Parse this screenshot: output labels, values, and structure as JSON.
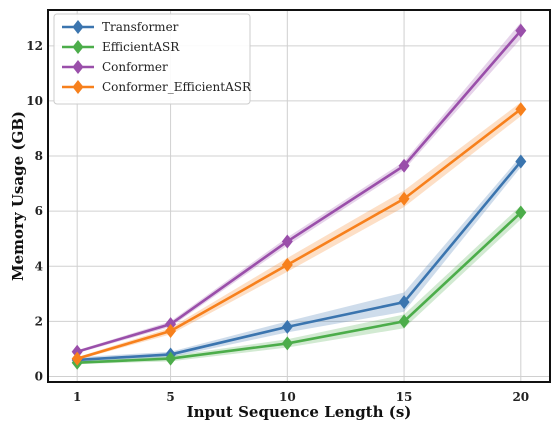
{
  "chart_data": {
    "type": "line",
    "title": "",
    "xlabel": "Input Sequence Length (s)",
    "ylabel": "Memory Usage (GB)",
    "x": [
      1,
      5,
      10,
      15,
      20
    ],
    "xticks": [
      "1",
      "5",
      "10",
      "15",
      "20"
    ],
    "yticks": [
      "0",
      "2",
      "4",
      "6",
      "8",
      "10",
      "12"
    ],
    "xlim": [
      -0.25,
      21.25
    ],
    "ylim": [
      -0.2,
      13.3
    ],
    "grid": true,
    "legend_position": "top-left",
    "marker": "diamond",
    "series": [
      {
        "name": "Transformer",
        "color": "#3b75af",
        "values": [
          0.6,
          0.8,
          1.8,
          2.7,
          7.8
        ],
        "band": [
          0.1,
          0.1,
          0.2,
          0.35,
          0.2
        ]
      },
      {
        "name": "EfficientASR",
        "color": "#4cad4a",
        "values": [
          0.5,
          0.65,
          1.2,
          2.0,
          5.95
        ],
        "band": [
          0.05,
          0.1,
          0.15,
          0.25,
          0.25
        ]
      },
      {
        "name": "Conformer",
        "color": "#9a4faa",
        "values": [
          0.9,
          1.9,
          4.9,
          7.65,
          12.55
        ],
        "band": [
          0.05,
          0.1,
          0.15,
          0.15,
          0.3
        ]
      },
      {
        "name": "Conformer_EfficientASR",
        "color": "#f7801c",
        "values": [
          0.65,
          1.65,
          4.05,
          6.45,
          9.7
        ],
        "band": [
          0.05,
          0.12,
          0.25,
          0.3,
          0.25
        ]
      }
    ]
  }
}
